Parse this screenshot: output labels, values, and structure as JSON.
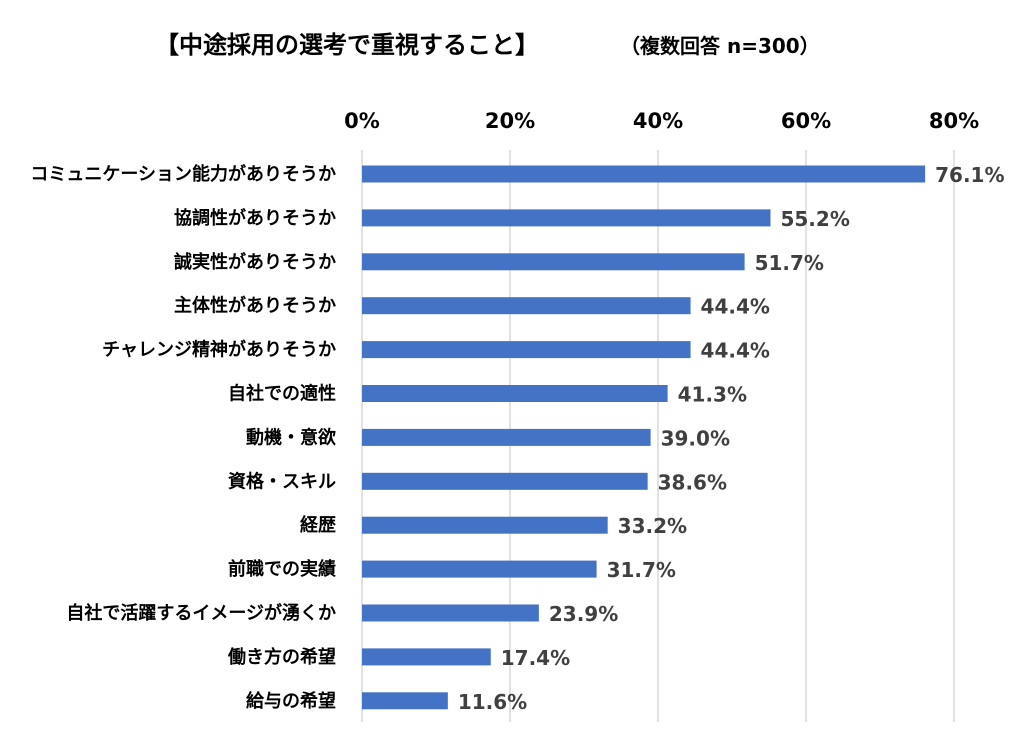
{
  "chart_data": {
    "type": "bar",
    "orientation": "horizontal",
    "title": "【中途採用の選考で重視すること】",
    "subtitle": "（複数回答 n=300）",
    "categories": [
      "コミュニケーション能力がありそうか",
      "協調性がありそうか",
      "誠実性がありそうか",
      "主体性がありそうか",
      "チャレンジ精神がありそうか",
      "自社での適性",
      "動機・意欲",
      "資格・スキル",
      "経歴",
      "前職での実績",
      "自社で活躍するイメージが湧くか",
      "働き方の希望",
      "給与の希望"
    ],
    "values": [
      76.1,
      55.2,
      51.7,
      44.4,
      44.4,
      41.3,
      39.0,
      38.6,
      33.2,
      31.7,
      23.9,
      17.4,
      11.6
    ],
    "data_labels": [
      "76.1%",
      "55.2%",
      "51.7%",
      "44.4%",
      "44.4%",
      "41.3%",
      "39.0%",
      "38.6%",
      "33.2%",
      "31.7%",
      "23.9%",
      "17.4%",
      "11.6%"
    ],
    "xlim": [
      0,
      80
    ],
    "x_ticks": [
      0,
      20,
      40,
      60,
      80
    ],
    "x_tick_labels": [
      "0%",
      "20%",
      "40%",
      "60%",
      "80%"
    ],
    "x_axis_position": "top",
    "grid": true,
    "legend": "none",
    "colors": {
      "bar": "#4472C4",
      "grid": "#D9D9D9",
      "data_label": "#404040"
    }
  }
}
